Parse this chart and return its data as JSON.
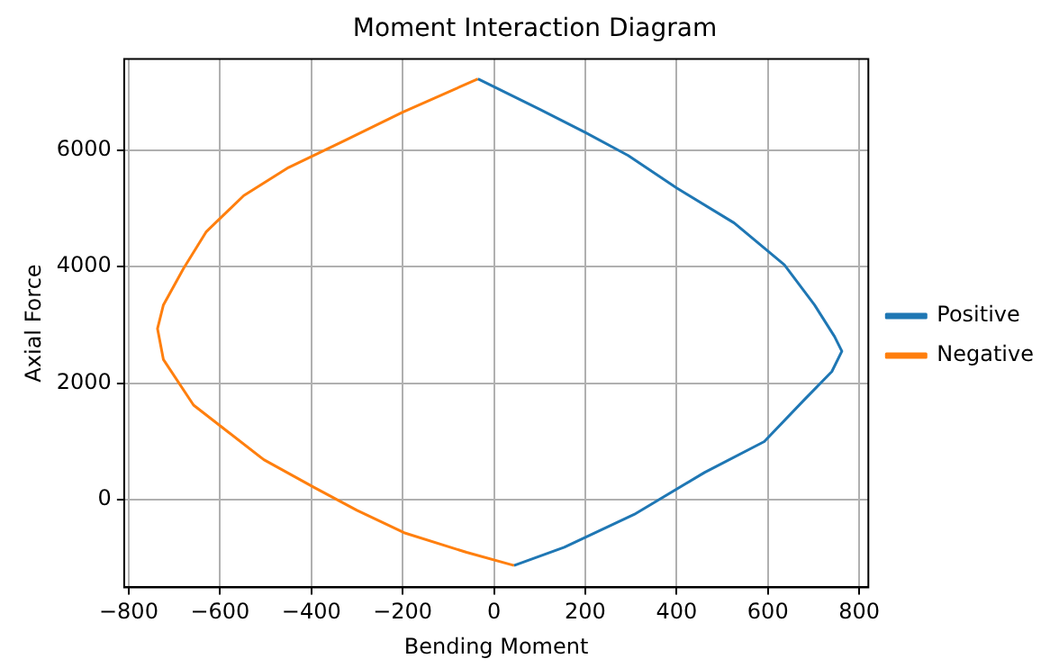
{
  "chart_data": {
    "type": "line",
    "title": "Moment Interaction Diagram",
    "xlabel": "Bending Moment",
    "ylabel": "Axial Force",
    "xlim": [
      -810,
      820
    ],
    "ylim": [
      -1500,
      7560
    ],
    "xticks": [
      -800,
      -600,
      -400,
      -200,
      0,
      200,
      400,
      600,
      800
    ],
    "yticks": [
      0,
      2000,
      4000,
      6000
    ],
    "grid": true,
    "legend": "right",
    "marker": "none",
    "line_style": "solid",
    "series": [
      {
        "name": "Positive",
        "color": "#1f77b4",
        "x": [
          -35,
          100,
          200,
          294,
          400,
          526,
          636,
          702,
          746,
          762,
          740,
          680,
          592,
          461,
          307,
          154,
          44
        ],
        "values": [
          7220,
          6700,
          6300,
          5906,
          5350,
          4750,
          4031,
          3344,
          2800,
          2550,
          2200,
          1719,
          1000,
          469,
          -250,
          -813,
          -1125
        ]
      },
      {
        "name": "Negative",
        "color": "#ff7f0e",
        "x": [
          -35,
          -200,
          -329,
          -450,
          -548,
          -630,
          -680,
          -724,
          -737,
          -724,
          -658,
          -580,
          -504,
          -395,
          -300,
          -197,
          -60,
          44
        ],
        "values": [
          7220,
          6650,
          6156,
          5700,
          5219,
          4600,
          3969,
          3344,
          2937,
          2406,
          1625,
          1150,
          688,
          219,
          -180,
          -563,
          -900,
          -1125
        ]
      }
    ]
  }
}
